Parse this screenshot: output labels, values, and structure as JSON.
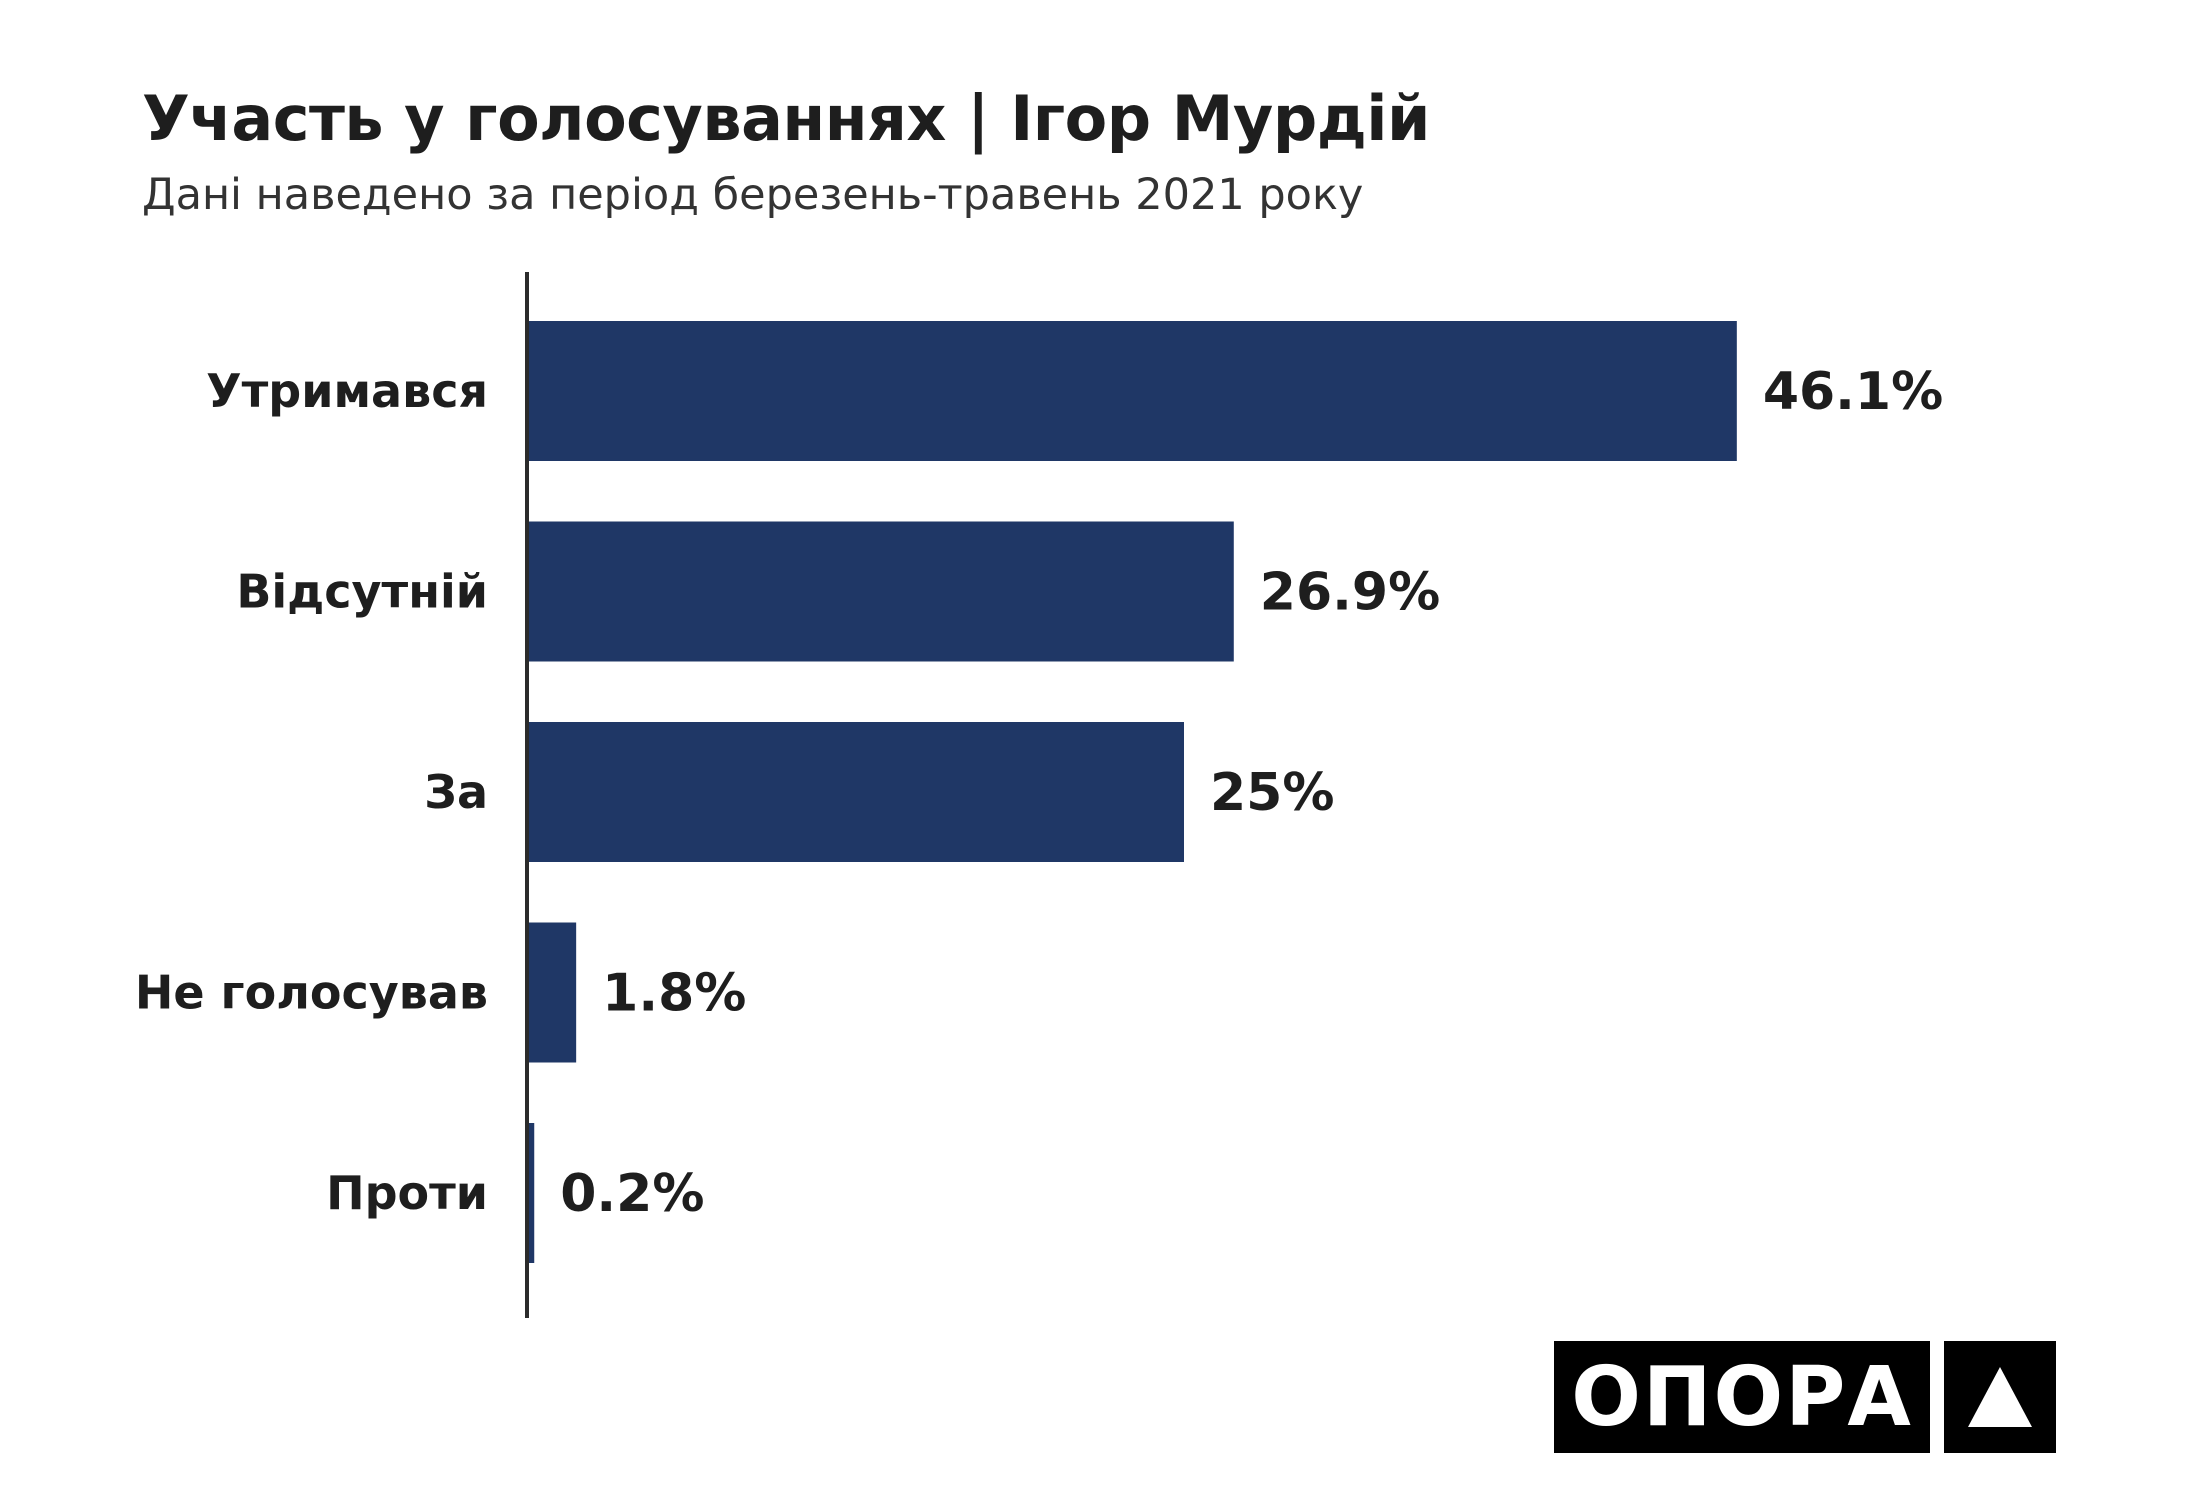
{
  "title": "Участь у голосуваннях | Ігор Мурдій",
  "subtitle": "Дані наведено за період березень-травень 2021 року",
  "logo_text": "ОПОРА",
  "colors": {
    "bar": "#1f3766",
    "axis": "#2b2b2b",
    "text": "#1e1e1e"
  },
  "chart_data": {
    "type": "bar",
    "orientation": "horizontal",
    "categories": [
      "Утримався",
      "Відсутній",
      "За",
      "Не голосував",
      "Проти"
    ],
    "values": [
      46.1,
      26.9,
      25,
      1.8,
      0.2
    ],
    "value_labels": [
      "46.1%",
      "26.9%",
      "25%",
      "1.8%",
      "0.2%"
    ],
    "unit": "%",
    "title": "Участь у голосуваннях | Ігор Мурдій",
    "subtitle": "Дані наведено за період березень-травень 2021 року",
    "grid": false,
    "legend": "none"
  }
}
